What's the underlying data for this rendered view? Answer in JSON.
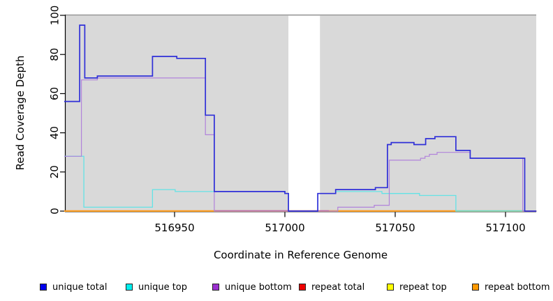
{
  "chart_data": {
    "type": "line",
    "subtype": "step-coverage-plot",
    "xlabel": "Coordinate in Reference Genome",
    "ylabel": "Read Coverage Depth",
    "xlim": [
      516900,
      517114
    ],
    "ylim": [
      0,
      100
    ],
    "grid": false,
    "x_ticks": [
      516950,
      517000,
      517050,
      517100
    ],
    "x_tick_labels": [
      "516950",
      "517000",
      "517050",
      "517100"
    ],
    "y_ticks": [
      0,
      20,
      40,
      60,
      80,
      100
    ],
    "y_tick_labels": [
      "0",
      "20",
      "40",
      "60",
      "80",
      "100"
    ],
    "plot_background": {
      "fill": "#d9d9d9",
      "top_border_color": "#8a8a8a",
      "gap_region": {
        "x_start": 517001.6,
        "x_end": 517015.9,
        "fill": "#ffffff"
      }
    },
    "series": [
      {
        "name": "repeat total",
        "color": "#c84a68",
        "points": [
          [
            516900,
            0
          ]
        ],
        "x_end": 517114
      },
      {
        "name": "repeat top",
        "color": "#ffee00",
        "points": [
          [
            516900,
            0
          ]
        ],
        "x_end": 517114
      },
      {
        "name": "repeat bottom",
        "color": "#ff9a1e",
        "points": [
          [
            516900,
            0
          ]
        ],
        "x_end": 517114
      },
      {
        "name": "unique top",
        "color": "#63e3e6",
        "points": [
          [
            516900,
            28
          ],
          [
            516908.9,
            2
          ],
          [
            516940,
            11
          ],
          [
            516950.3,
            10
          ],
          [
            517000,
            9
          ],
          [
            517001.6,
            0
          ],
          [
            517014.9,
            9
          ],
          [
            517023,
            10
          ],
          [
            517044,
            9
          ],
          [
            517061,
            8
          ],
          [
            517077.5,
            0
          ]
        ],
        "x_end": 517108.5
      },
      {
        "name": "unique bottom",
        "color": "#b183da",
        "points": [
          [
            516900,
            28
          ],
          [
            516907.8,
            67
          ],
          [
            516915,
            68
          ],
          [
            516964,
            39
          ],
          [
            516968,
            0
          ],
          [
            517024,
            2
          ],
          [
            517040.5,
            3
          ],
          [
            517047.3,
            26
          ],
          [
            517061.5,
            27
          ],
          [
            517063.5,
            28
          ],
          [
            517065.5,
            29
          ],
          [
            517069,
            30
          ],
          [
            517084,
            27
          ],
          [
            517107.8,
            0
          ]
        ],
        "x_end": 517114
      },
      {
        "name": "unique total",
        "color": "#2f2fd8",
        "points": [
          [
            516900,
            56
          ],
          [
            516907,
            95
          ],
          [
            516909.3,
            68
          ],
          [
            516915,
            69
          ],
          [
            516940,
            79
          ],
          [
            516951,
            78
          ],
          [
            516964,
            49
          ],
          [
            516968,
            10
          ],
          [
            517000,
            9
          ],
          [
            517001.6,
            0
          ],
          [
            517014.9,
            9
          ],
          [
            517023,
            11
          ],
          [
            517041,
            12
          ],
          [
            517046.5,
            34
          ],
          [
            517048.2,
            35
          ],
          [
            517058.5,
            34
          ],
          [
            517063.8,
            37
          ],
          [
            517068,
            38
          ],
          [
            517077.5,
            31
          ],
          [
            517084,
            27
          ],
          [
            517108.7,
            0
          ]
        ],
        "x_end": 517114
      }
    ],
    "baseline_visible_segments": [
      {
        "name": "repeat-bottom-visible",
        "color": "#ff9a1e",
        "x_start": 516900,
        "x_end": 516968
      },
      {
        "name": "repeat-total-visible",
        "color": "#c84a68",
        "x_start": 516968,
        "x_end": 517020
      },
      {
        "name": "repeat-bottom-visible",
        "color": "#ff9a1e",
        "x_start": 517020,
        "x_end": 517077.5
      },
      {
        "name": "top-overlap-green",
        "color": "#86cc92",
        "x_start": 517077.5,
        "x_end": 517108.5
      }
    ]
  },
  "legend": {
    "items": [
      {
        "label": "unique total",
        "color": "#0000ee"
      },
      {
        "label": "unique top",
        "color": "#00eeee"
      },
      {
        "label": "unique bottom",
        "color": "#9b30d0"
      },
      {
        "label": "repeat total",
        "color": "#ee0000"
      },
      {
        "label": "repeat top",
        "color": "#ffff00"
      },
      {
        "label": "repeat bottom",
        "color": "#ff9900"
      }
    ]
  }
}
